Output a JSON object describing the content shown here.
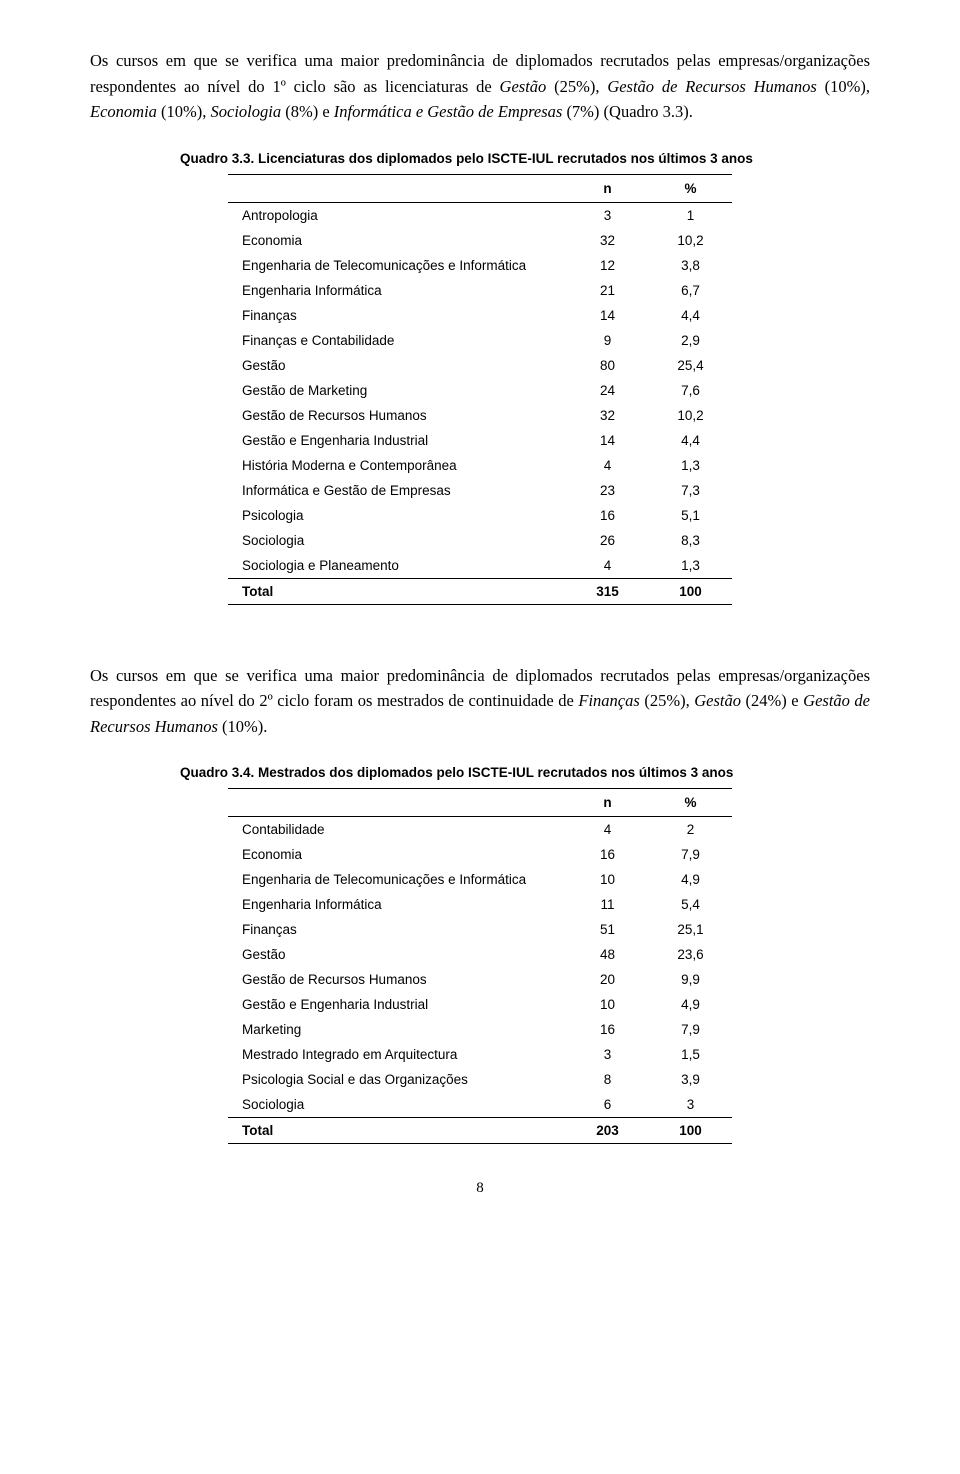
{
  "para1_part1": "Os cursos em que se verifica uma maior predominância de diplomados recrutados pelas empresas/organizações respondentes ao nível do 1º ciclo são as licenciaturas de ",
  "para1_ital1": "Gestão",
  "para1_part2": " (25%), ",
  "para1_ital2": "Gestão de Recursos Humanos",
  "para1_part3": " (10%), ",
  "para1_ital3": "Economia",
  "para1_part4": " (10%), ",
  "para1_ital4": "Sociologia",
  "para1_part5": " (8%) e ",
  "para1_ital5": "Informática e Gestão de Empresas",
  "para1_part6": " (7%) (Quadro 3.3).",
  "table1_title": "Quadro 3.3. Licenciaturas dos diplomados pelo ISCTE-IUL recrutados nos últimos 3 anos",
  "header_n": "n",
  "header_pct": "%",
  "table1_rows": [
    {
      "label": "Antropologia",
      "n": "3",
      "pct": "1"
    },
    {
      "label": "Economia",
      "n": "32",
      "pct": "10,2"
    },
    {
      "label": "Engenharia de Telecomunicações e Informática",
      "n": "12",
      "pct": "3,8"
    },
    {
      "label": "Engenharia Informática",
      "n": "21",
      "pct": "6,7"
    },
    {
      "label": "Finanças",
      "n": "14",
      "pct": "4,4"
    },
    {
      "label": "Finanças e Contabilidade",
      "n": "9",
      "pct": "2,9"
    },
    {
      "label": "Gestão",
      "n": "80",
      "pct": "25,4"
    },
    {
      "label": "Gestão de Marketing",
      "n": "24",
      "pct": "7,6"
    },
    {
      "label": "Gestão de Recursos Humanos",
      "n": "32",
      "pct": "10,2"
    },
    {
      "label": "Gestão e Engenharia Industrial",
      "n": "14",
      "pct": "4,4"
    },
    {
      "label": "História Moderna e Contemporânea",
      "n": "4",
      "pct": "1,3"
    },
    {
      "label": "Informática e Gestão de Empresas",
      "n": "23",
      "pct": "7,3"
    },
    {
      "label": "Psicologia",
      "n": "16",
      "pct": "5,1"
    },
    {
      "label": "Sociologia",
      "n": "26",
      "pct": "8,3"
    },
    {
      "label": "Sociologia e Planeamento",
      "n": "4",
      "pct": "1,3"
    }
  ],
  "table1_total_label": "Total",
  "table1_total_n": "315",
  "table1_total_pct": "100",
  "para2_part1": "Os cursos em que se verifica uma maior predominância de diplomados recrutados pelas empresas/organizações respondentes ao nível do 2º ciclo foram os mestrados de continuidade de ",
  "para2_ital1": "Finanças",
  "para2_part2": " (25%), ",
  "para2_ital2": "Gestão",
  "para2_part3": " (24%) e ",
  "para2_ital3": "Gestão de Recursos Humanos",
  "para2_part4": " (10%).",
  "table2_title": "Quadro 3.4. Mestrados dos diplomados pelo ISCTE-IUL recrutados nos últimos 3 anos",
  "table2_rows": [
    {
      "label": "Contabilidade",
      "n": "4",
      "pct": "2"
    },
    {
      "label": "Economia",
      "n": "16",
      "pct": "7,9"
    },
    {
      "label": "Engenharia de Telecomunicações e Informática",
      "n": "10",
      "pct": "4,9"
    },
    {
      "label": "Engenharia Informática",
      "n": "11",
      "pct": "5,4"
    },
    {
      "label": "Finanças",
      "n": "51",
      "pct": "25,1"
    },
    {
      "label": "Gestão",
      "n": "48",
      "pct": "23,6"
    },
    {
      "label": "Gestão de Recursos Humanos",
      "n": "20",
      "pct": "9,9"
    },
    {
      "label": "Gestão e Engenharia Industrial",
      "n": "10",
      "pct": "4,9"
    },
    {
      "label": "Marketing",
      "n": "16",
      "pct": "7,9"
    },
    {
      "label": "Mestrado Integrado em Arquitectura",
      "n": "3",
      "pct": "1,5"
    },
    {
      "label": "Psicologia Social e das Organizações",
      "n": "8",
      "pct": "3,9"
    },
    {
      "label": "Sociologia",
      "n": "6",
      "pct": "3"
    }
  ],
  "table2_total_label": "Total",
  "table2_total_n": "203",
  "table2_total_pct": "100",
  "page_number": "8"
}
